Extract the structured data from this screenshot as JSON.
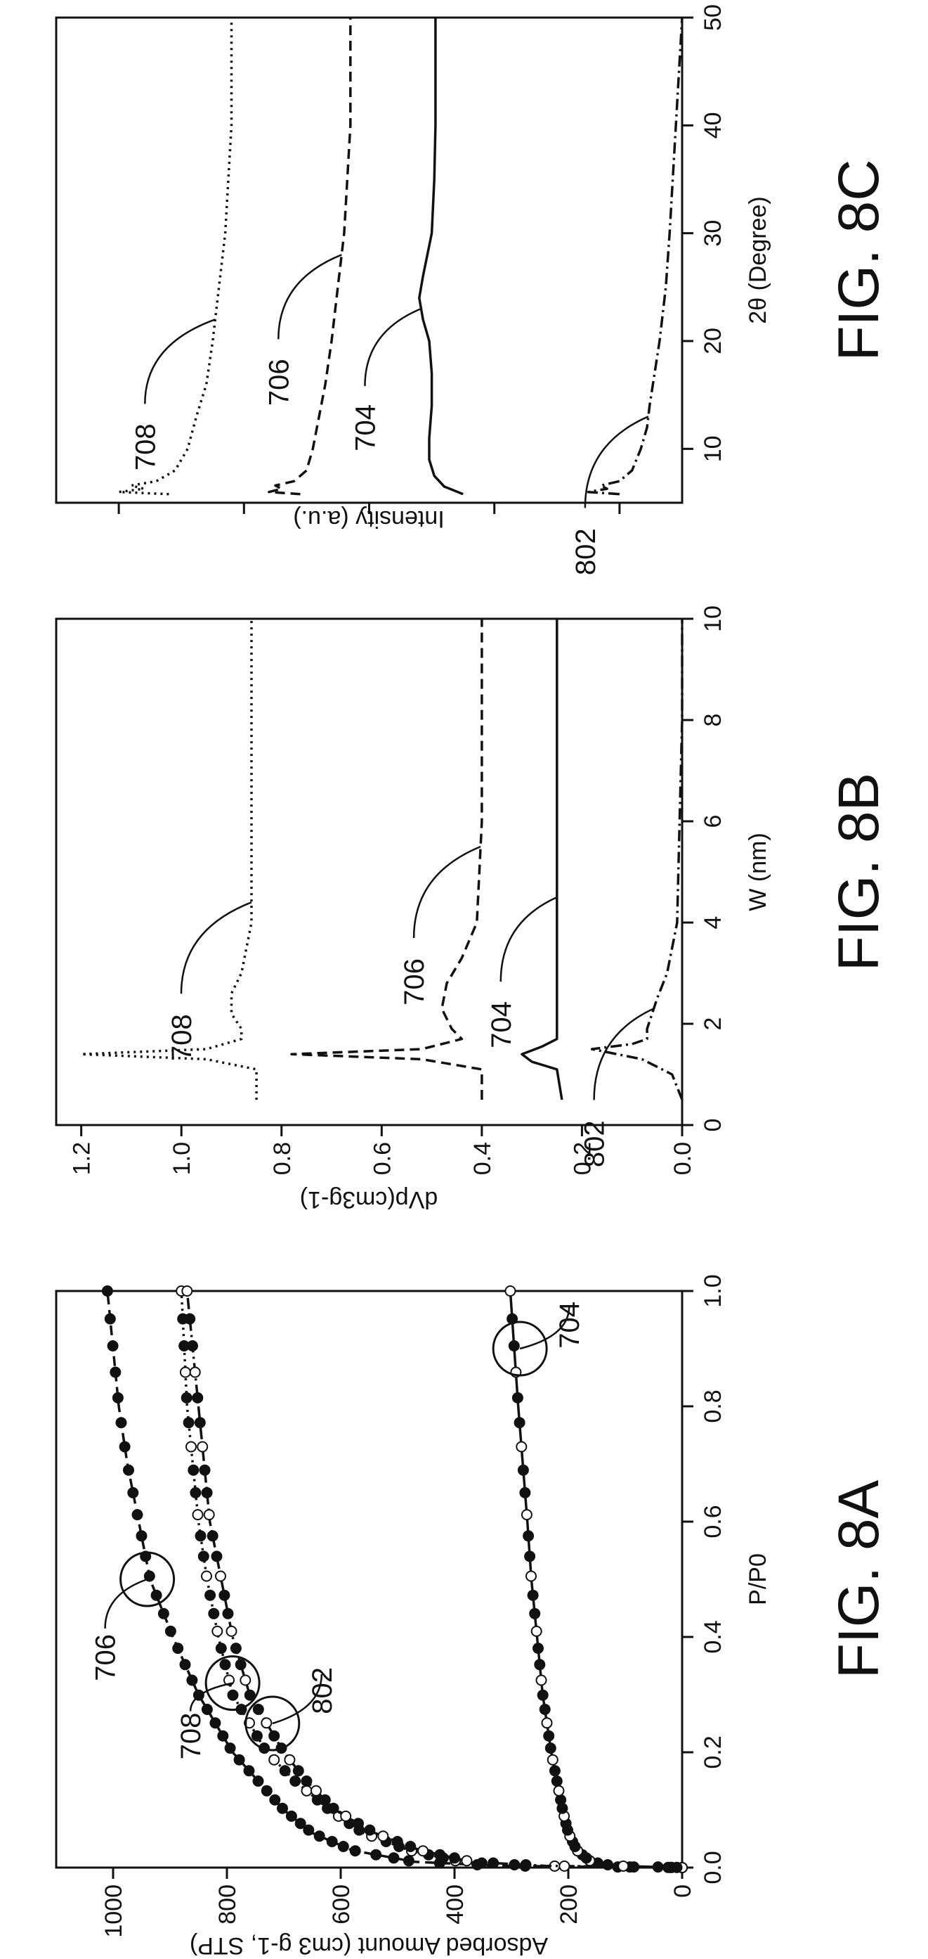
{
  "chart_data": [
    {
      "figure_label": "FIG. 8A",
      "type": "scatter",
      "xlabel": "P/P0",
      "ylabel": "Adsorbed Amount (cm3 g-1, STP)",
      "xlim": [
        0,
        1.0
      ],
      "ylim": [
        0,
        1100
      ],
      "xticks": [
        "0.0",
        "0.2",
        "0.4",
        "0.6",
        "0.8",
        "1.0"
      ],
      "yticks": [
        "0",
        "200",
        "400",
        "600",
        "800",
        "1000"
      ],
      "series": [
        {
          "name": "706",
          "line_style": "dashed",
          "x": [
            0.0,
            0.003,
            0.01,
            0.03,
            0.06,
            0.1,
            0.15,
            0.2,
            0.3,
            0.4,
            0.5,
            0.6,
            0.7,
            0.8,
            0.9,
            1.0
          ],
          "y": [
            0,
            320,
            470,
            580,
            650,
            700,
            745,
            790,
            850,
            895,
            935,
            955,
            975,
            990,
            1000,
            1010
          ]
        },
        {
          "name": "708",
          "line_style": "dotted",
          "x": [
            0.0,
            0.003,
            0.01,
            0.03,
            0.06,
            0.1,
            0.15,
            0.2,
            0.3,
            0.4,
            0.5,
            0.6,
            0.7,
            0.8,
            0.9,
            1.0
          ],
          "y": [
            0,
            260,
            390,
            480,
            560,
            620,
            680,
            730,
            790,
            815,
            835,
            850,
            860,
            870,
            875,
            880
          ]
        },
        {
          "name": "802",
          "line_style": "dash-dot",
          "x": [
            0.0,
            0.003,
            0.01,
            0.03,
            0.06,
            0.1,
            0.15,
            0.2,
            0.3,
            0.4,
            0.5,
            0.6,
            0.7,
            0.8,
            0.9,
            1.0
          ],
          "y": [
            0,
            240,
            370,
            460,
            540,
            610,
            660,
            700,
            760,
            790,
            810,
            830,
            840,
            850,
            860,
            870
          ]
        },
        {
          "name": "704",
          "line_style": "solid",
          "x": [
            0.0,
            0.003,
            0.01,
            0.03,
            0.06,
            0.1,
            0.15,
            0.2,
            0.3,
            0.4,
            0.5,
            0.6,
            0.7,
            0.8,
            0.9,
            1.0
          ],
          "y": [
            0,
            120,
            160,
            185,
            200,
            210,
            220,
            230,
            245,
            255,
            265,
            272,
            280,
            288,
            295,
            302
          ]
        }
      ],
      "circled_points": [
        {
          "series": "706",
          "x": 0.5,
          "y": 940
        },
        {
          "series": "708",
          "x": 0.32,
          "y": 790
        },
        {
          "series": "802",
          "x": 0.25,
          "y": 720
        },
        {
          "series": "704",
          "x": 0.9,
          "y": 285
        }
      ]
    },
    {
      "figure_label": "FIG. 8B",
      "type": "line",
      "xlabel": "W (nm)",
      "ylabel": "dVp(cm3g-1)",
      "xlim": [
        0,
        10
      ],
      "ylim": [
        0,
        1.25
      ],
      "xticks": [
        "0",
        "2",
        "4",
        "6",
        "8",
        "10"
      ],
      "yticks": [
        "0.0",
        "0.2",
        "0.4",
        "0.6",
        "0.8",
        "1.0",
        "1.2"
      ],
      "series": [
        {
          "name": "708",
          "line_style": "dotted",
          "x": [
            0.5,
            1.1,
            1.3,
            1.4,
            1.5,
            1.7,
            1.9,
            2.2,
            2.6,
            3.0,
            4.0,
            6.0,
            8.0,
            10.0
          ],
          "y": [
            0.85,
            0.85,
            0.95,
            1.2,
            0.95,
            0.88,
            0.88,
            0.9,
            0.9,
            0.88,
            0.86,
            0.86,
            0.86,
            0.86
          ]
        },
        {
          "name": "706",
          "line_style": "dashed",
          "x": [
            0.5,
            1.1,
            1.3,
            1.4,
            1.5,
            1.7,
            1.9,
            2.3,
            2.8,
            3.3,
            4.0,
            6.0,
            8.0,
            10.0
          ],
          "y": [
            0.4,
            0.4,
            0.52,
            0.78,
            0.52,
            0.44,
            0.46,
            0.48,
            0.47,
            0.44,
            0.41,
            0.4,
            0.4,
            0.4
          ]
        },
        {
          "name": "704",
          "line_style": "solid",
          "x": [
            0.5,
            1.1,
            1.25,
            1.4,
            1.55,
            1.7,
            2.0,
            3.0,
            4.0,
            6.0,
            8.0,
            10.0
          ],
          "y": [
            0.24,
            0.25,
            0.3,
            0.32,
            0.28,
            0.25,
            0.25,
            0.25,
            0.25,
            0.25,
            0.25,
            0.25
          ]
        },
        {
          "name": "802",
          "line_style": "dash-dot",
          "x": [
            0.5,
            1.0,
            1.3,
            1.5,
            1.6,
            1.7,
            1.9,
            2.5,
            3.0,
            4.0,
            6.0,
            8.0,
            10.0
          ],
          "y": [
            0.0,
            0.02,
            0.08,
            0.18,
            0.1,
            0.07,
            0.07,
            0.05,
            0.03,
            0.01,
            0.005,
            0.0,
            0.0
          ]
        }
      ]
    },
    {
      "figure_label": "FIG. 8C",
      "type": "line",
      "xlabel": "2θ (Degree)",
      "ylabel": "Intensity (a.u.)",
      "xlim": [
        5,
        50
      ],
      "ylim": [
        0,
        5
      ],
      "xticks": [
        "10",
        "20",
        "30",
        "40",
        "50"
      ],
      "yticks": [],
      "series": [
        {
          "name": "708",
          "line_style": "dotted",
          "x": [
            5.8,
            6.0,
            6.3,
            6.6,
            7,
            8,
            10,
            13,
            16,
            20,
            25,
            30,
            40,
            50
          ],
          "y": [
            4.1,
            4.5,
            4.3,
            4.4,
            4.2,
            4.05,
            3.95,
            3.88,
            3.8,
            3.75,
            3.7,
            3.65,
            3.6,
            3.6
          ]
        },
        {
          "name": "706",
          "line_style": "dashed",
          "x": [
            5.8,
            6.0,
            6.3,
            6.6,
            7,
            8,
            10,
            13,
            16,
            20,
            25,
            30,
            40,
            50
          ],
          "y": [
            3.05,
            3.3,
            3.2,
            3.25,
            3.1,
            3.0,
            2.95,
            2.9,
            2.85,
            2.8,
            2.75,
            2.7,
            2.65,
            2.65
          ]
        },
        {
          "name": "704",
          "line_style": "solid",
          "x": [
            5.8,
            6.5,
            7.5,
            9,
            11,
            14,
            17,
            20,
            22,
            24,
            26,
            30,
            35,
            40,
            50
          ],
          "y": [
            1.75,
            1.9,
            1.98,
            2.02,
            2.02,
            2.0,
            2.0,
            2.02,
            2.07,
            2.1,
            2.07,
            2.0,
            1.98,
            1.97,
            1.97
          ]
        },
        {
          "name": "802",
          "line_style": "dash-dot",
          "x": [
            5.8,
            6.0,
            6.3,
            6.6,
            7,
            8,
            10,
            12,
            14,
            17,
            20,
            25,
            30,
            40,
            50
          ],
          "y": [
            0.5,
            0.75,
            0.6,
            0.65,
            0.5,
            0.4,
            0.33,
            0.28,
            0.26,
            0.22,
            0.18,
            0.13,
            0.1,
            0.05,
            0.0
          ]
        }
      ]
    }
  ]
}
